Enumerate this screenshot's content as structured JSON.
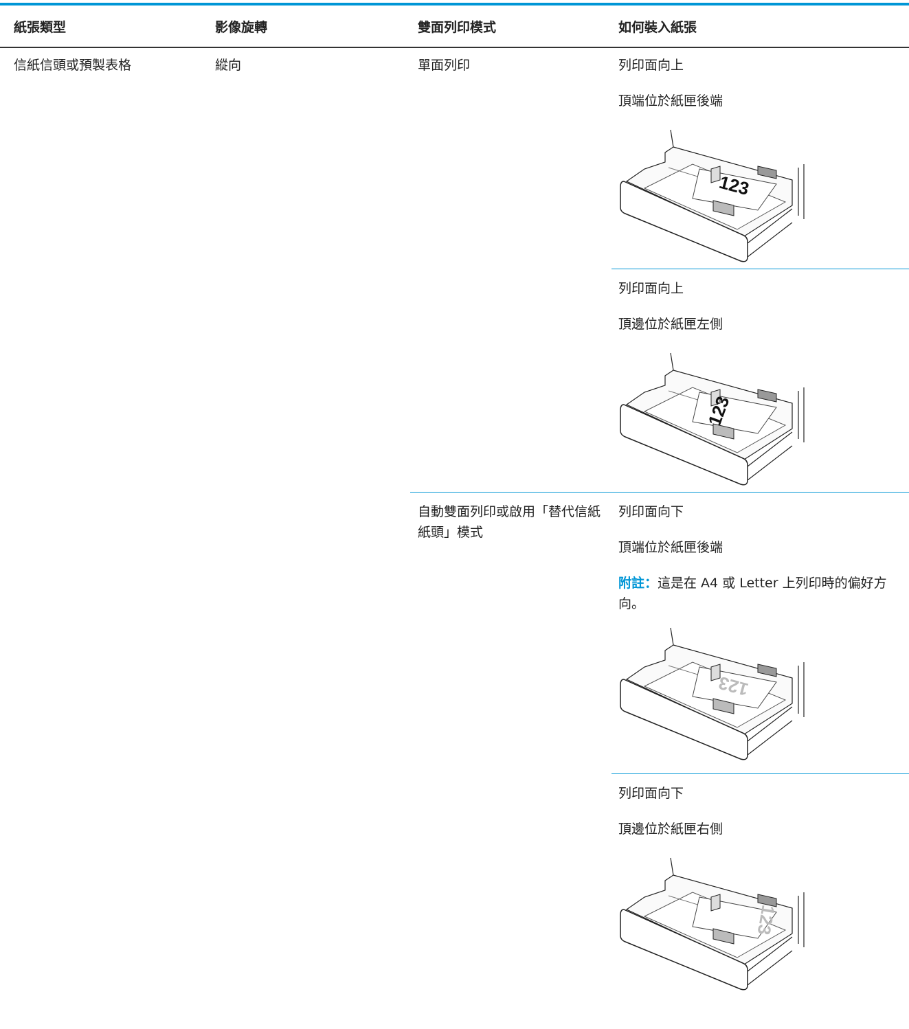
{
  "table": {
    "headers": [
      "紙張類型",
      "影像旋轉",
      "雙面列印模式",
      "如何裝入紙張"
    ],
    "paper_type": "信紙信頭或預製表格",
    "rotation": "縱向",
    "modes": [
      {
        "mode": "單面列印",
        "options": [
          {
            "lines": [
              "列印面向上",
              "頂端位於紙匣後端"
            ],
            "image_text": "123"
          },
          {
            "lines": [
              "列印面向上",
              "頂邊位於紙匣左側"
            ],
            "image_text": "123"
          }
        ]
      },
      {
        "mode": "自動雙面列印或啟用「替代信紙紙頭」模式",
        "options": [
          {
            "lines": [
              "列印面向下",
              "頂端位於紙匣後端"
            ],
            "note_label": "附註：",
            "note": "這是在 A4 或 Letter 上列印時的偏好方向。",
            "image_text": "123"
          },
          {
            "lines": [
              "列印面向下",
              "頂邊位於紙匣右側"
            ],
            "image_text": "123"
          }
        ]
      }
    ]
  }
}
